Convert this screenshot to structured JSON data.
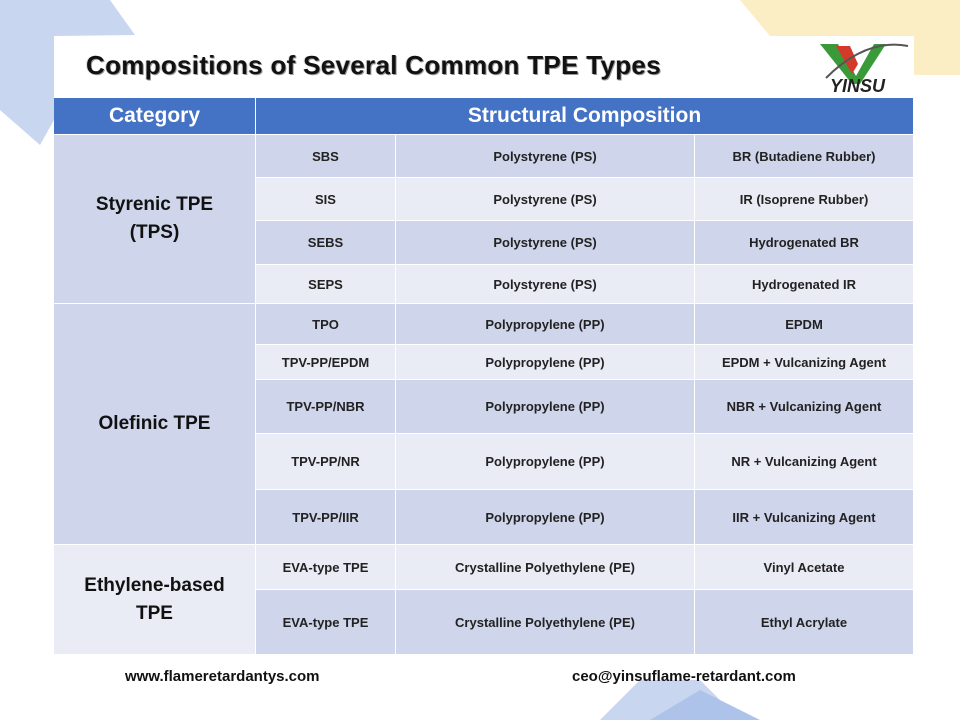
{
  "header": {
    "title": "Compositions of Several Common TPE Types",
    "logo": "YINSU"
  },
  "table": {
    "columns": [
      "Category",
      "Structural Composition"
    ],
    "groups": [
      {
        "category": [
          "Styrenic TPE",
          "(TPS)"
        ],
        "rows": [
          [
            "SBS",
            "Polystyrene (PS)",
            "BR (Butadiene Rubber)"
          ],
          [
            "SIS",
            "Polystyrene (PS)",
            "IR (Isoprene Rubber)"
          ],
          [
            "SEBS",
            "Polystyrene (PS)",
            "Hydrogenated BR"
          ],
          [
            "SEPS",
            "Polystyrene (PS)",
            "Hydrogenated IR"
          ]
        ]
      },
      {
        "category": [
          "Olefinic TPE"
        ],
        "rows": [
          [
            "TPO",
            "Polypropylene (PP)",
            "EPDM"
          ],
          [
            "TPV-PP/EPDM",
            "Polypropylene (PP)",
            "EPDM + Vulcanizing Agent"
          ],
          [
            "TPV-PP/NBR",
            "Polypropylene (PP)",
            "NBR + Vulcanizing Agent"
          ],
          [
            "TPV-PP/NR",
            "Polypropylene (PP)",
            "NR + Vulcanizing Agent"
          ],
          [
            "TPV-PP/IIR",
            "Polypropylene (PP)",
            "IIR + Vulcanizing Agent"
          ]
        ]
      },
      {
        "category": [
          "Ethylene-based",
          "TPE"
        ],
        "rows": [
          [
            "EVA-type TPE",
            "Crystalline Polyethylene (PE)",
            "Vinyl Acetate"
          ],
          [
            "EVA-type TPE",
            "Crystalline Polyethylene (PE)",
            "Ethyl Acrylate"
          ]
        ]
      }
    ]
  },
  "footer": {
    "website": "www.flameretardantys.com",
    "email": "ceo@yinsuflame-retardant.com"
  }
}
